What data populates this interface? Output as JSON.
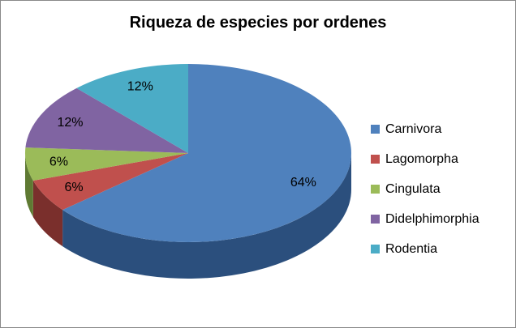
{
  "chart_data": {
    "type": "pie",
    "title": "Riqueza de especies por ordenes",
    "categories": [
      "Carnivora",
      "Lagomorpha",
      "Cingulata",
      "Didelphimorphia",
      "Rodentia"
    ],
    "values": [
      64,
      6,
      6,
      12,
      12
    ],
    "labels": [
      "64%",
      "6%",
      "6%",
      "12%",
      "12%"
    ],
    "colors": [
      "#4f81bd",
      "#c0504d",
      "#9bbb59",
      "#8064a2",
      "#4bacc6"
    ],
    "side_colors": [
      "#2b4f7d",
      "#7a2f2c",
      "#5f7a33",
      "#4e3b68",
      "#2c6f80"
    ],
    "legend_position": "right",
    "style": "3d"
  }
}
